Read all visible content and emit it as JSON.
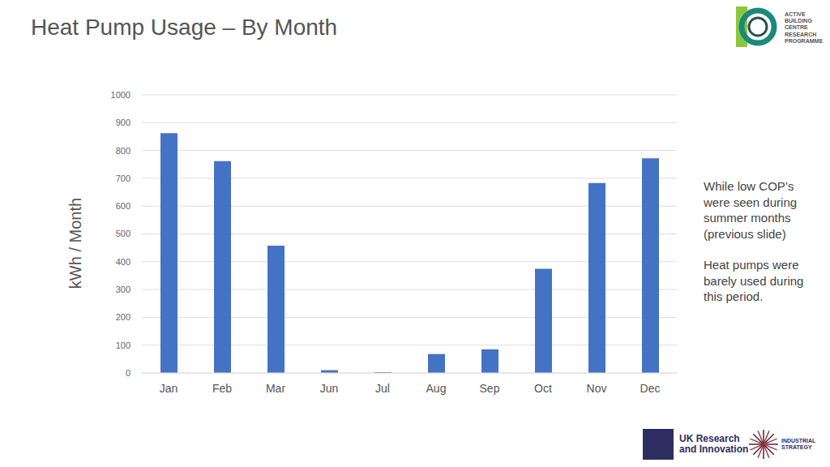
{
  "chart_data": {
    "type": "bar",
    "title": "Heat Pump Usage – By Month",
    "y_label": "kWh / Month",
    "categories": [
      "Jan",
      "Feb",
      "Mar",
      "Jun",
      "Jul",
      "Aug",
      "Sep",
      "Oct",
      "Nov",
      "Dec"
    ],
    "values": [
      862,
      762,
      458,
      10,
      3,
      68,
      85,
      375,
      683,
      772
    ],
    "color": "#4472c4",
    "ylim": [
      0,
      1000
    ],
    "yticks": [
      0,
      100,
      200,
      300,
      400,
      500,
      600,
      700,
      800,
      900,
      1000
    ],
    "grid": true,
    "annotations": [
      "While low COP’s were seen during summer months (previous slide)",
      "Heat pumps were barely used during this period.",
      "ACTIVE BUILDING CENTRE RESEARCH PROGRAMME",
      "UK Research and Innovation",
      "INDUSTRIAL STRATEGY"
    ]
  }
}
